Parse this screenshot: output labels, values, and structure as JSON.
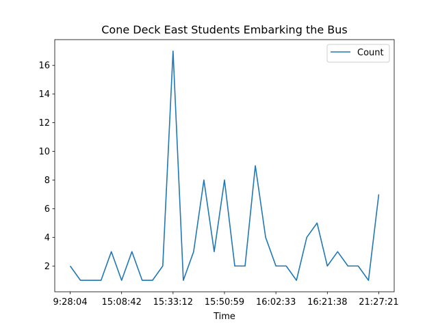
{
  "chart_data": {
    "type": "line",
    "title": "Cone Deck East Students Embarking the Bus",
    "xlabel": "Time",
    "ylabel": "",
    "x_tick_labels": [
      "9:28:04",
      "15:08:42",
      "15:33:12",
      "15:50:59",
      "16:02:33",
      "16:21:38",
      "21:27:21"
    ],
    "x_tick_positions": [
      0,
      5,
      10,
      15,
      20,
      25,
      30
    ],
    "y_ticks": [
      2,
      4,
      6,
      8,
      10,
      12,
      14,
      16
    ],
    "ylim": [
      0.2,
      17.8
    ],
    "xlim": [
      -1.5,
      31.5
    ],
    "grid": false,
    "legend_position": "upper right",
    "series": [
      {
        "name": "Count",
        "color": "#1f77b4",
        "values": [
          2,
          1,
          1,
          1,
          3,
          1,
          3,
          1,
          1,
          2,
          17,
          1,
          3,
          8,
          3,
          8,
          2,
          2,
          9,
          4,
          2,
          2,
          1,
          4,
          5,
          2,
          3,
          2,
          2,
          1,
          7
        ]
      }
    ]
  }
}
